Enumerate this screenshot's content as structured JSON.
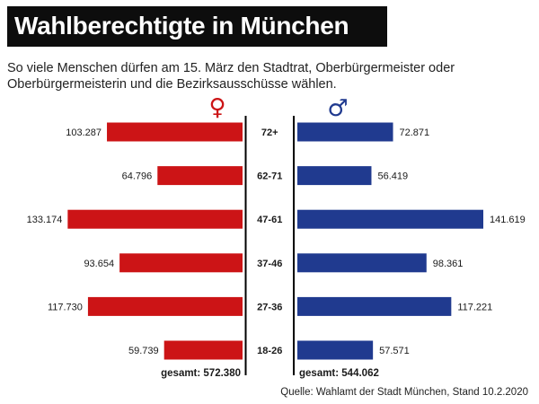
{
  "title": "Wahlberechtigte in München",
  "subtitle": "So viele Menschen dürfen am 15. März den Stadtrat, Oberbürgermeister oder Oberbürgermeisterin und die Bezirksausschüsse wählen.",
  "source": "Quelle: Wahlamt der Stadt München, Stand 10.2.2020",
  "colors": {
    "female": "#cc1416",
    "male": "#203a8f",
    "axis": "#000000"
  },
  "chart_data": {
    "type": "bar",
    "orientation": "horizontal-butterfly",
    "categories": [
      "72+",
      "62-71",
      "47-61",
      "37-46",
      "27-36",
      "18-26"
    ],
    "series": [
      {
        "name": "female",
        "symbol": "♀",
        "values": [
          103287,
          64796,
          133174,
          93654,
          117730,
          59739
        ],
        "labels": [
          "103.287",
          "64.796",
          "133.174",
          "93.654",
          "117.730",
          "59.739"
        ],
        "total_label": "gesamt: 572.380"
      },
      {
        "name": "male",
        "symbol": "♂",
        "values": [
          72871,
          56419,
          141619,
          98361,
          117221,
          57571
        ],
        "labels": [
          "72.871",
          "56.419",
          "141.619",
          "98.361",
          "117.221",
          "57.571"
        ],
        "total_label": "gesamt: 544.062"
      }
    ],
    "xlim": [
      0,
      141619
    ]
  }
}
